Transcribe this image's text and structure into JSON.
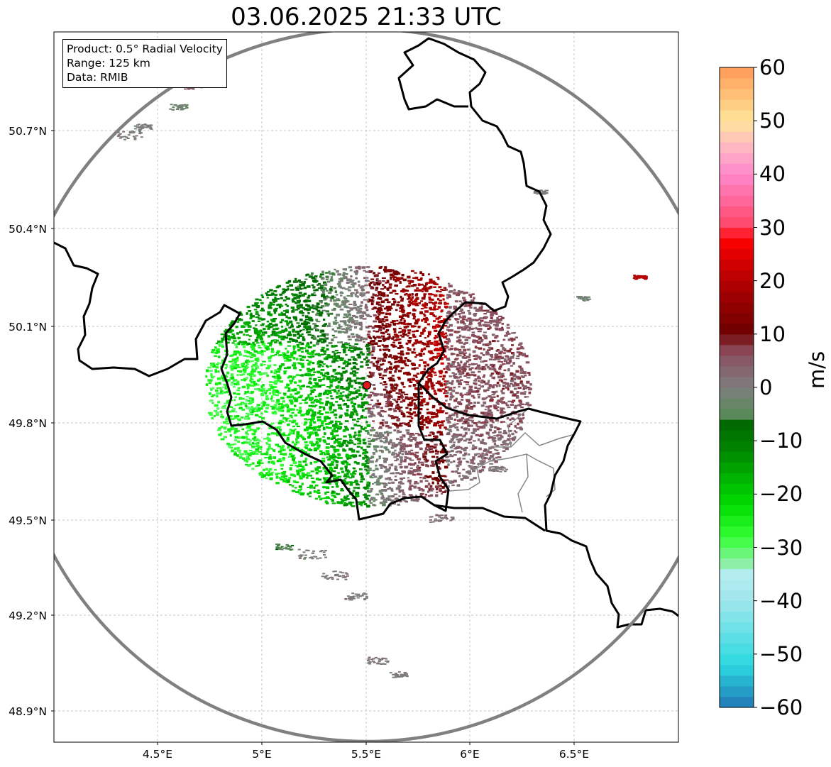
{
  "title": "03.06.2025 21:33 UTC",
  "info": {
    "product": "Product: 0.5° Radial Velocity",
    "range": "Range: 125 km",
    "data": "Data: RMIB"
  },
  "axes": {
    "lat_labels": [
      "50.7°N",
      "50.4°N",
      "50.1°N",
      "49.8°N",
      "49.5°N",
      "49.2°N",
      "48.9°N"
    ],
    "lon_labels": [
      "4.5°E",
      "5°E",
      "5.5°E",
      "6°E",
      "6.5°E"
    ]
  },
  "radar": {
    "site_lon": 5.505,
    "site_lat": 49.914,
    "range_km": 125
  },
  "colorbar": {
    "unit": "m/s",
    "min": -60,
    "max": 60,
    "ticks": [
      "60",
      "50",
      "40",
      "30",
      "20",
      "10",
      "0",
      "−10",
      "−20",
      "−30",
      "−40",
      "−50",
      "−60"
    ],
    "stops": [
      {
        "v": -60,
        "c": "#1f77b4"
      },
      {
        "v": -52,
        "c": "#2bd9e0"
      },
      {
        "v": -40,
        "c": "#9fe6ec"
      },
      {
        "v": -34,
        "c": "#b7eef0"
      },
      {
        "v": -33,
        "c": "#8ef0a8"
      },
      {
        "v": -28,
        "c": "#33ff33"
      },
      {
        "v": -22,
        "c": "#00dd00"
      },
      {
        "v": -12,
        "c": "#008800"
      },
      {
        "v": -6,
        "c": "#006400"
      },
      {
        "v": -5,
        "c": "#5a8a5a"
      },
      {
        "v": 0,
        "c": "#7f7f7f"
      },
      {
        "v": 6,
        "c": "#885060"
      },
      {
        "v": 8,
        "c": "#8a3a45"
      },
      {
        "v": 10,
        "c": "#6b0000"
      },
      {
        "v": 20,
        "c": "#b30000"
      },
      {
        "v": 28,
        "c": "#ff0000"
      },
      {
        "v": 30,
        "c": "#ff4466"
      },
      {
        "v": 40,
        "c": "#ff88cc"
      },
      {
        "v": 46,
        "c": "#ffc0c0"
      },
      {
        "v": 50,
        "c": "#ffe599"
      },
      {
        "v": 60,
        "c": "#ff9955"
      }
    ]
  },
  "colors": {
    "border": "#000000",
    "range_ring": "#808080",
    "grid": "#b0b0b0",
    "site_marker": "#e31a1c"
  }
}
